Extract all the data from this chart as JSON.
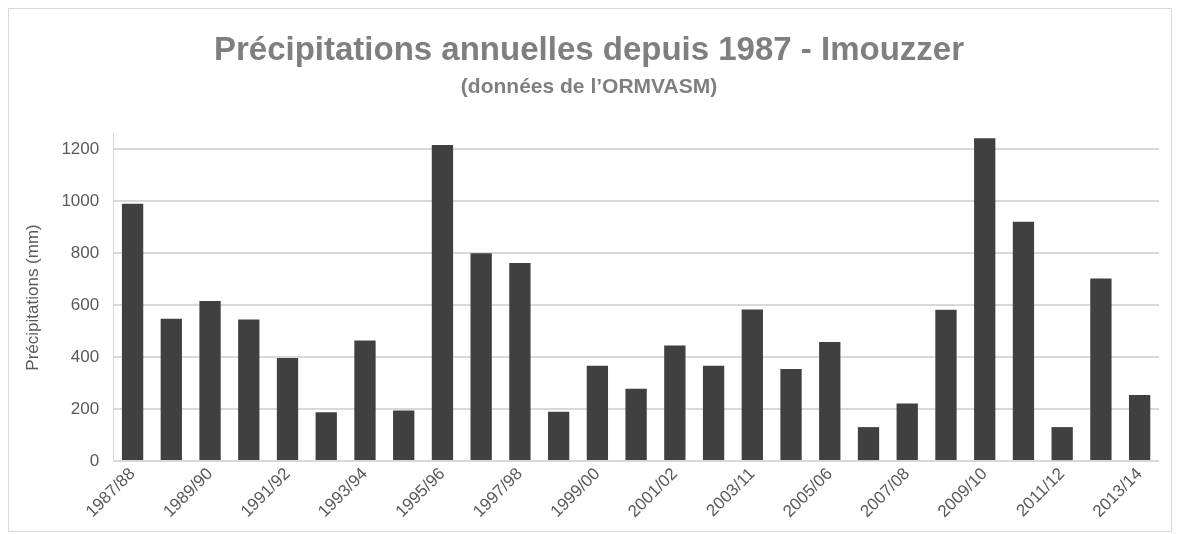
{
  "chart_data": {
    "type": "bar",
    "title": "Précipitations annuelles depuis 1987 - Imouzzer",
    "subtitle": "(données de l’ORMVASM)",
    "ylabel": "Précipitations (mm)",
    "categories": [
      "1987/88",
      null,
      "1989/90",
      null,
      "1991/92",
      null,
      "1993/94",
      null,
      "1995/96",
      null,
      "1997/98",
      null,
      "1999/00",
      null,
      "2001/02",
      null,
      "2003/11",
      null,
      "2005/06",
      null,
      "2007/08",
      null,
      "2009/10",
      null,
      "2011/12",
      null,
      "2013/14"
    ],
    "values": [
      991,
      548,
      616,
      545,
      397,
      188,
      464,
      195,
      1217,
      800,
      763,
      190,
      367,
      279,
      445,
      367,
      584,
      355,
      459,
      131,
      222,
      583,
      1243,
      921,
      131,
      703,
      255
    ],
    "color": "#404040",
    "ylim": [
      0,
      1260
    ],
    "yticks": [
      0,
      200,
      400,
      600,
      800,
      1000,
      1200
    ],
    "grid": "y",
    "legend": false
  }
}
